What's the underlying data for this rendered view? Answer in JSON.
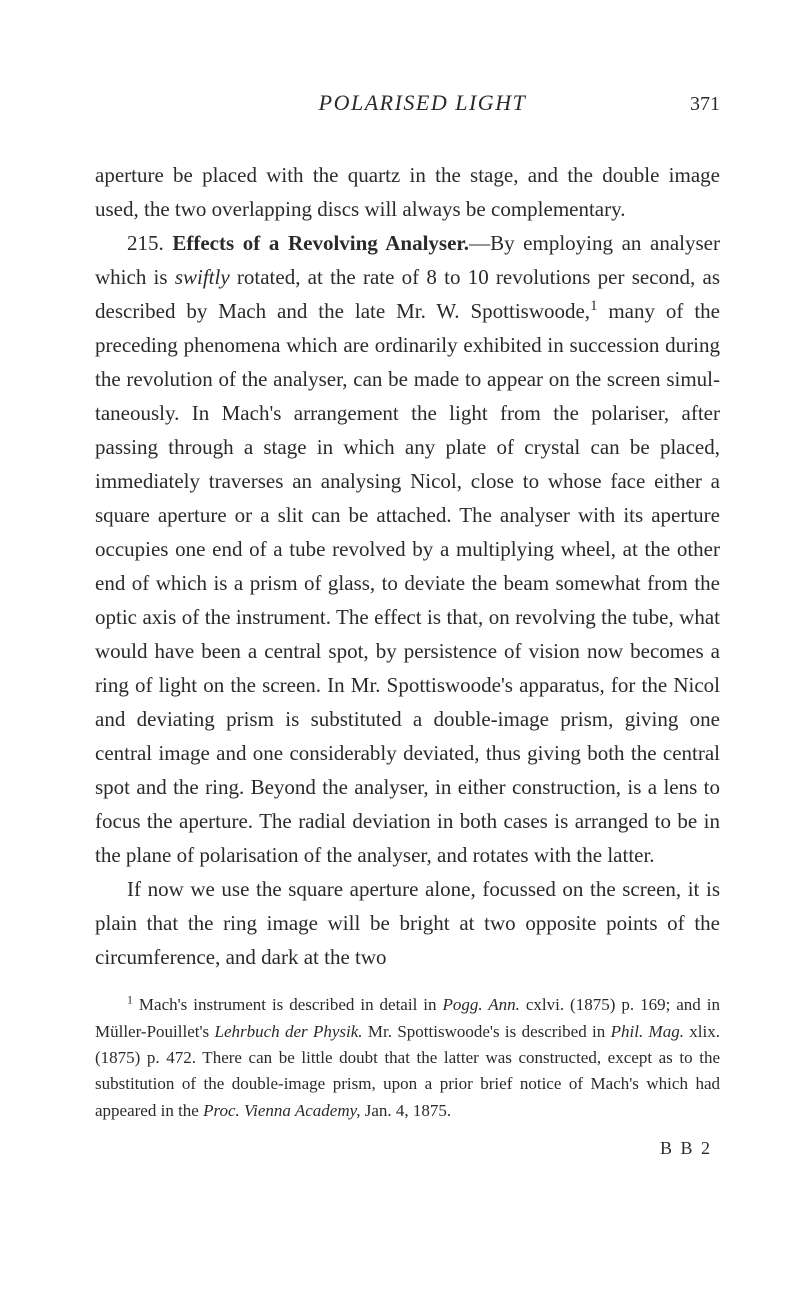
{
  "header": {
    "running_title": "POLARISED LIGHT",
    "page_number": "371"
  },
  "paragraphs": {
    "p1": "aperture be placed with the quartz in the stage, and the double image used, the two overlapping discs will always be complementary.",
    "p2_section_num": "215. ",
    "p2_section_title": "Effects of a Revolving Analyser.",
    "p2_a": "—By employing an analyser which is ",
    "p2_italic": "swiftly",
    "p2_b": " rotated, at the rate of 8 to 10 revolutions per second, as described by Mach and the late Mr. W. Spottiswoode,",
    "p2_sup": "1",
    "p2_c": " many of the preceding phenomena which are ordinarily exhibited in succession during the revolution of the analyser, can be made to appear on the screen simul­taneously. In Mach's arrangement the light from the polariser, after passing through a stage in which any plate of crystal can be placed, immediately traverses an analysing Nicol, close to whose face either a square aperture or a slit can be attached. The analyser with its aperture occupies one end of a tube revolved by a multiplying wheel, at the other end of which is a prism of glass, to deviate the beam some­what from the optic axis of the instrument. The effect is that, on revolving the tube, what would have been a central spot, by persistence of vision now becomes a ring of light on the screen. In Mr. Spottiswoode's apparatus, for the Nicol and deviating prism is substituted a double-image prism, giving one central image and one considerably deviated, thus giving both the central spot and the ring. Beyond the analyser, in either construction, is a lens to focus the aperture. The radial deviation in both cases is arranged to be in the plane of polarisation of the analyser, and rotates with the latter.",
    "p3": "If now we use the square aperture alone, focussed on the screen, it is plain that the ring image will be bright at two opposite points of the circumference, and dark at the two"
  },
  "footnote": {
    "sup": "1",
    "a": " Mach's instrument is described in detail in ",
    "i1": "Pogg. Ann.",
    "b": " cxlvi. (1875) p. 169; and in Müller-Pouillet's ",
    "i2": "Lehrbuch der Physik.",
    "c": " Mr. Spottiswoode's is described in ",
    "i3": "Phil. Mag.",
    "d": " xlix. (1875) p. 472. There can be little doubt that the latter was constructed, except as to the substitution of the double-image prism, upon a prior brief notice of Mach's which had appeared in the ",
    "i4": "Proc. Vienna Academy,",
    "e": " Jan. 4, 1875."
  },
  "signature": "B B 2"
}
